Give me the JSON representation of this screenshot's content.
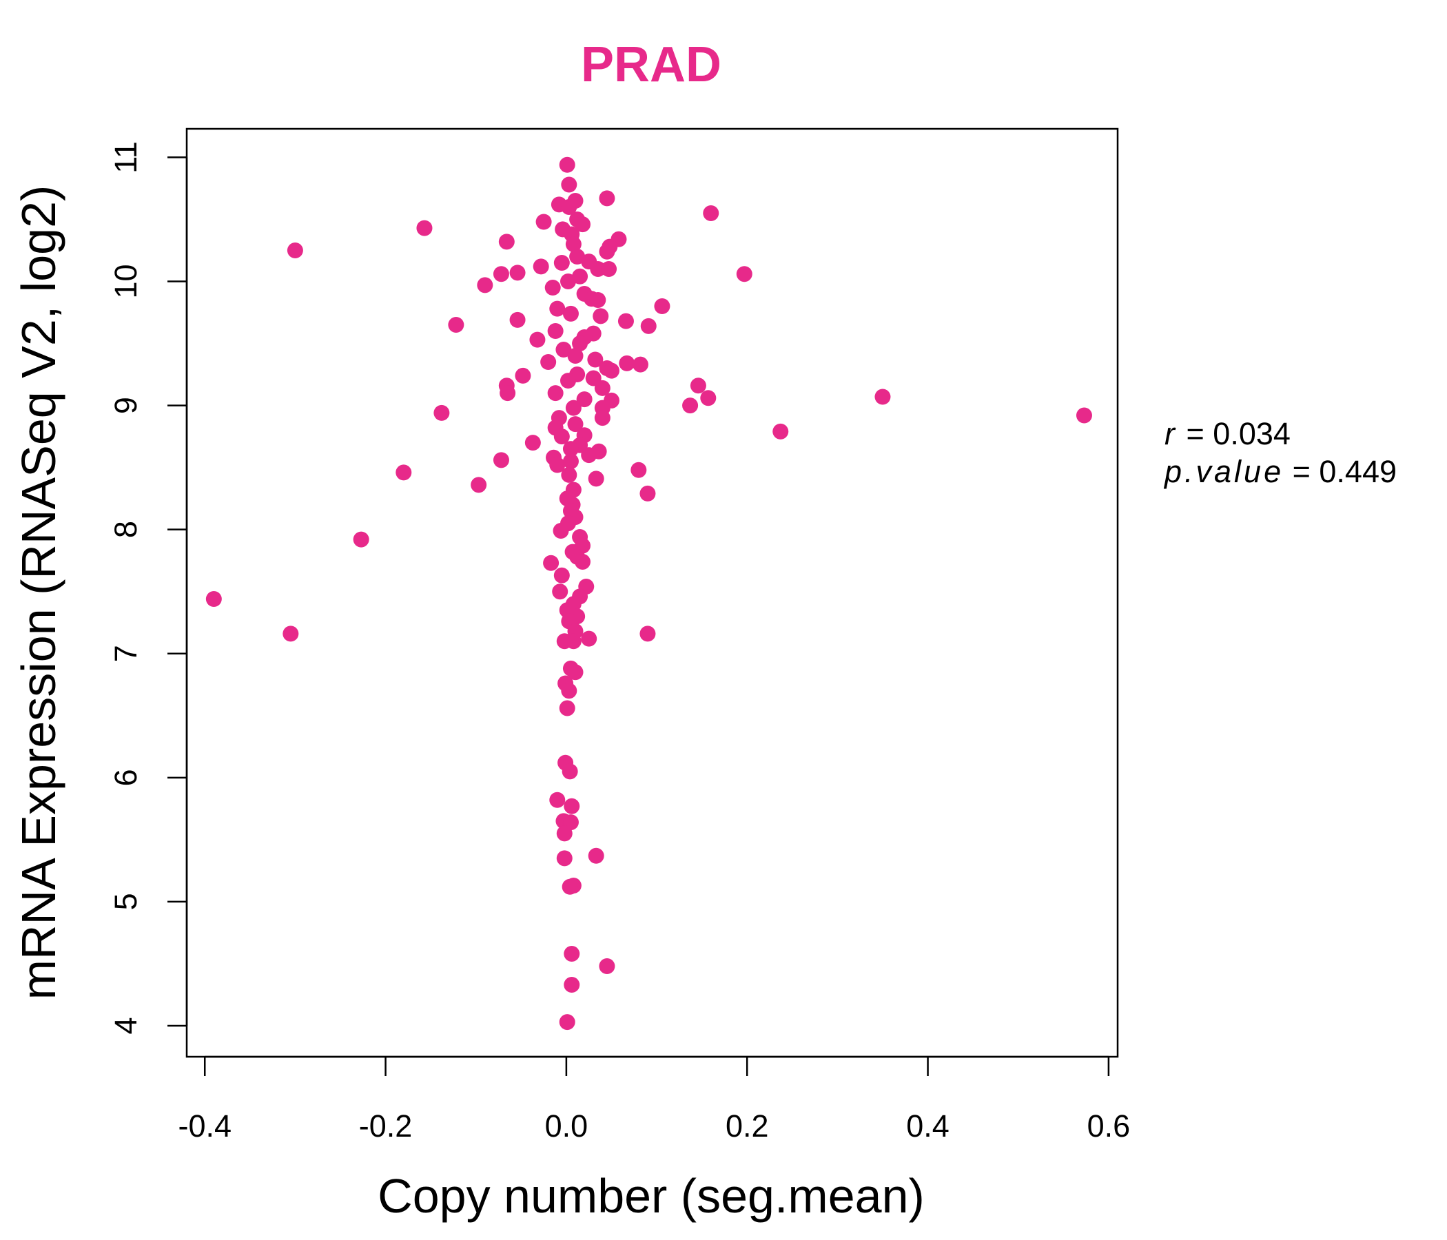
{
  "chart_data": {
    "type": "scatter",
    "title": "PRAD",
    "xlabel": "Copy number (seg.mean)",
    "ylabel": "mRNA Expression (RNASeq V2, log2)",
    "xlim": [
      -0.42,
      0.61
    ],
    "ylim": [
      3.75,
      11.23
    ],
    "x_ticks": [
      -0.4,
      -0.2,
      0.0,
      0.2,
      0.4,
      0.6
    ],
    "x_tick_labels": [
      "-0.4",
      "-0.2",
      "0.0",
      "0.2",
      "0.4",
      "0.6"
    ],
    "y_ticks": [
      4,
      5,
      6,
      7,
      8,
      9,
      10,
      11
    ],
    "y_tick_labels": [
      "4",
      "5",
      "6",
      "7",
      "8",
      "9",
      "10",
      "11"
    ],
    "point_color": "#E7298A",
    "grid": false,
    "stats": {
      "r_label": "r",
      "r_value": "0.034",
      "p_label": "p.value",
      "p_value": "0.449"
    },
    "points": [
      [
        0.001,
        10.94
      ],
      [
        0.003,
        10.78
      ],
      [
        0.045,
        10.67
      ],
      [
        0.01,
        10.65
      ],
      [
        -0.008,
        10.62
      ],
      [
        0.003,
        10.6
      ],
      [
        0.16,
        10.55
      ],
      [
        0.012,
        10.5
      ],
      [
        -0.025,
        10.48
      ],
      [
        0.018,
        10.46
      ],
      [
        -0.157,
        10.43
      ],
      [
        -0.004,
        10.42
      ],
      [
        0.006,
        10.38
      ],
      [
        0.058,
        10.34
      ],
      [
        -0.066,
        10.32
      ],
      [
        0.008,
        10.3
      ],
      [
        0.048,
        10.28
      ],
      [
        -0.3,
        10.25
      ],
      [
        0.045,
        10.24
      ],
      [
        0.012,
        10.2
      ],
      [
        0.025,
        10.16
      ],
      [
        -0.005,
        10.15
      ],
      [
        -0.028,
        10.12
      ],
      [
        0.035,
        10.1
      ],
      [
        0.047,
        10.1
      ],
      [
        -0.072,
        10.06
      ],
      [
        -0.054,
        10.07
      ],
      [
        0.197,
        10.06
      ],
      [
        0.015,
        10.04
      ],
      [
        0.002,
        10.0
      ],
      [
        -0.09,
        9.97
      ],
      [
        -0.015,
        9.95
      ],
      [
        0.02,
        9.9
      ],
      [
        0.028,
        9.86
      ],
      [
        0.035,
        9.85
      ],
      [
        0.106,
        9.8
      ],
      [
        -0.01,
        9.78
      ],
      [
        0.005,
        9.74
      ],
      [
        0.038,
        9.72
      ],
      [
        0.066,
        9.68
      ],
      [
        -0.054,
        9.69
      ],
      [
        -0.122,
        9.65
      ],
      [
        0.091,
        9.64
      ],
      [
        -0.012,
        9.6
      ],
      [
        0.03,
        9.58
      ],
      [
        0.02,
        9.55
      ],
      [
        -0.032,
        9.53
      ],
      [
        0.015,
        9.5
      ],
      [
        -0.003,
        9.45
      ],
      [
        0.01,
        9.4
      ],
      [
        0.032,
        9.37
      ],
      [
        -0.02,
        9.35
      ],
      [
        0.067,
        9.34
      ],
      [
        0.082,
        9.33
      ],
      [
        0.045,
        9.3
      ],
      [
        0.05,
        9.28
      ],
      [
        0.012,
        9.25
      ],
      [
        -0.048,
        9.24
      ],
      [
        0.03,
        9.22
      ],
      [
        0.002,
        9.2
      ],
      [
        -0.066,
        9.16
      ],
      [
        0.146,
        9.16
      ],
      [
        -0.065,
        9.1
      ],
      [
        0.04,
        9.14
      ],
      [
        -0.012,
        9.1
      ],
      [
        0.157,
        9.06
      ],
      [
        0.35,
        9.07
      ],
      [
        0.05,
        9.04
      ],
      [
        0.02,
        9.05
      ],
      [
        0.137,
        9.0
      ],
      [
        0.04,
        8.98
      ],
      [
        0.008,
        8.98
      ],
      [
        -0.138,
        8.94
      ],
      [
        0.573,
        8.92
      ],
      [
        0.04,
        8.9
      ],
      [
        -0.008,
        8.9
      ],
      [
        0.01,
        8.85
      ],
      [
        -0.012,
        8.82
      ],
      [
        0.237,
        8.79
      ],
      [
        0.02,
        8.76
      ],
      [
        -0.005,
        8.75
      ],
      [
        -0.037,
        8.7
      ],
      [
        0.015,
        8.68
      ],
      [
        0.005,
        8.65
      ],
      [
        0.036,
        8.63
      ],
      [
        0.025,
        8.6
      ],
      [
        -0.014,
        8.58
      ],
      [
        -0.072,
        8.56
      ],
      [
        0.005,
        8.55
      ],
      [
        -0.01,
        8.52
      ],
      [
        0.08,
        8.48
      ],
      [
        -0.18,
        8.46
      ],
      [
        0.003,
        8.44
      ],
      [
        0.033,
        8.41
      ],
      [
        -0.097,
        8.36
      ],
      [
        0.008,
        8.32
      ],
      [
        0.09,
        8.29
      ],
      [
        0.001,
        8.25
      ],
      [
        0.007,
        8.2
      ],
      [
        0.005,
        8.15
      ],
      [
        0.01,
        8.1
      ],
      [
        0.002,
        8.05
      ],
      [
        -0.006,
        7.99
      ],
      [
        0.015,
        7.94
      ],
      [
        -0.227,
        7.92
      ],
      [
        0.018,
        7.87
      ],
      [
        0.007,
        7.82
      ],
      [
        0.012,
        7.78
      ],
      [
        -0.017,
        7.73
      ],
      [
        0.018,
        7.74
      ],
      [
        -0.005,
        7.63
      ],
      [
        0.022,
        7.54
      ],
      [
        -0.007,
        7.5
      ],
      [
        0.015,
        7.46
      ],
      [
        -0.39,
        7.44
      ],
      [
        0.008,
        7.4
      ],
      [
        0.001,
        7.35
      ],
      [
        0.012,
        7.3
      ],
      [
        0.003,
        7.26
      ],
      [
        0.01,
        7.18
      ],
      [
        0.09,
        7.16
      ],
      [
        -0.305,
        7.16
      ],
      [
        0.025,
        7.12
      ],
      [
        0.008,
        7.1
      ],
      [
        -0.002,
        7.1
      ],
      [
        0.005,
        6.88
      ],
      [
        0.01,
        6.85
      ],
      [
        -0.001,
        6.76
      ],
      [
        0.003,
        6.7
      ],
      [
        0.001,
        6.56
      ],
      [
        -0.001,
        6.12
      ],
      [
        0.004,
        6.05
      ],
      [
        -0.01,
        5.82
      ],
      [
        0.006,
        5.77
      ],
      [
        -0.003,
        5.65
      ],
      [
        0.005,
        5.64
      ],
      [
        -0.002,
        5.55
      ],
      [
        0.033,
        5.37
      ],
      [
        -0.002,
        5.35
      ],
      [
        0.008,
        5.13
      ],
      [
        0.004,
        5.12
      ],
      [
        0.006,
        4.58
      ],
      [
        0.045,
        4.48
      ],
      [
        0.006,
        4.33
      ],
      [
        0.001,
        4.03
      ]
    ]
  }
}
